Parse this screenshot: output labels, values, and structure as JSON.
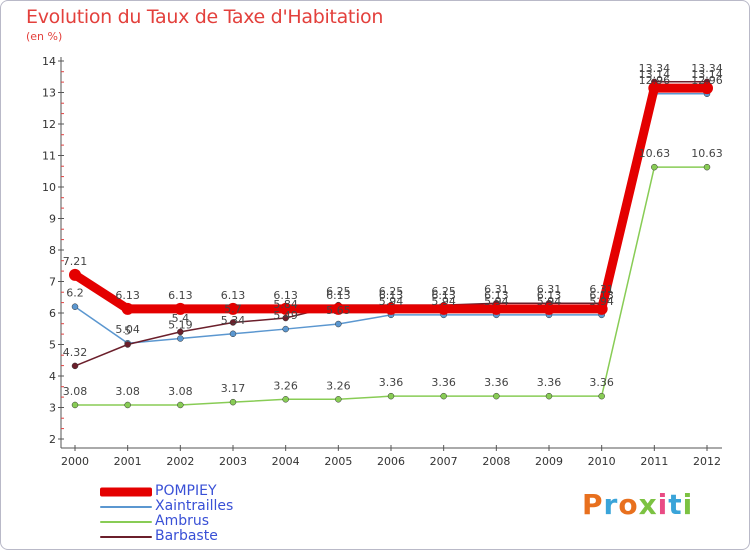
{
  "header": {
    "title": "Evolution du Taux de Taxe d'Habitation",
    "subtitle": "(en %)"
  },
  "brand": {
    "text": "Proxiti",
    "colors": [
      "#e8701e",
      "#3aa4d9",
      "#e8701e",
      "#7cc242",
      "#e94b84",
      "#3aa4d9",
      "#7cc242"
    ]
  },
  "chart_data": {
    "type": "line",
    "x": [
      "2000",
      "2001",
      "2002",
      "2003",
      "2004",
      "2005",
      "2006",
      "2007",
      "2008",
      "2009",
      "2010",
      "2011",
      "2012"
    ],
    "ylim": [
      2,
      14
    ],
    "yticks": [
      2,
      3,
      4,
      5,
      6,
      7,
      8,
      9,
      10,
      11,
      12,
      13,
      14
    ],
    "grid": false,
    "legend_position": "bottom-left",
    "series": [
      {
        "name": "Xaintrailles",
        "color": "#5b97d0",
        "values": [
          6.2,
          5.04,
          5.19,
          5.34,
          5.49,
          5.65,
          5.94,
          5.94,
          5.94,
          5.94,
          5.94,
          12.96,
          12.96
        ],
        "labels": [
          "6.2",
          "5.04",
          "5.19",
          "5.34",
          "5.49",
          "5.65",
          "5.94",
          "5.94",
          "5.94",
          "5.94",
          "5.94",
          "12.96",
          "12.96"
        ]
      },
      {
        "name": "Ambrus",
        "color": "#88cc55",
        "values": [
          3.08,
          3.08,
          3.08,
          3.17,
          3.26,
          3.26,
          3.36,
          3.36,
          3.36,
          3.36,
          3.36,
          10.63,
          10.63
        ],
        "labels": [
          "3.08",
          "3.08",
          "3.08",
          "3.17",
          "3.26",
          "3.26",
          "3.36",
          "3.36",
          "3.36",
          "3.36",
          "3.36",
          "10.63",
          "10.63"
        ]
      },
      {
        "name": "Barbaste",
        "color": "#6b1f2b",
        "values": [
          4.32,
          5.0,
          5.4,
          5.7,
          5.84,
          6.25,
          6.25,
          6.25,
          6.31,
          6.31,
          6.31,
          13.34,
          13.34
        ],
        "labels": [
          "4.32",
          "5",
          "5.4",
          "5.7",
          "5.84",
          "6.25",
          "6.25",
          "6.25",
          "6.31",
          "6.31",
          "6.31",
          "13.34",
          "13.34"
        ]
      },
      {
        "name": "POMPIEY",
        "color": "#e40000",
        "values": [
          7.21,
          6.13,
          6.13,
          6.13,
          6.13,
          6.13,
          6.13,
          6.13,
          6.13,
          6.13,
          6.13,
          13.14,
          13.14
        ],
        "labels": [
          "7.21",
          "6.13",
          "6.13",
          "6.13",
          "6.13",
          "6.13",
          "6.13",
          "6.13",
          "6.13",
          "6.13",
          "6.13",
          "13.14",
          "13.14"
        ]
      }
    ],
    "legend": [
      {
        "name": "POMPIEY",
        "color": "#e40000",
        "thick": true
      },
      {
        "name": "Xaintrailles",
        "color": "#5b97d0",
        "thick": false
      },
      {
        "name": "Ambrus",
        "color": "#88cc55",
        "thick": false
      },
      {
        "name": "Barbaste",
        "color": "#6b1f2b",
        "thick": false
      }
    ]
  }
}
